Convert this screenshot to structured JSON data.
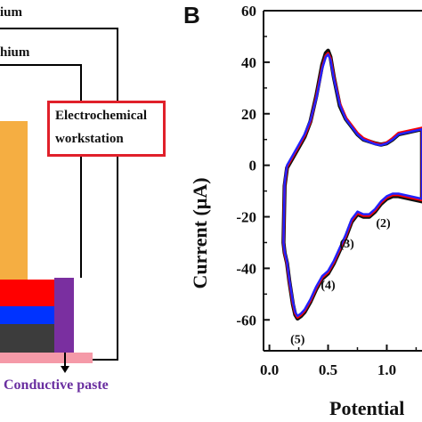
{
  "schematic": {
    "wire_labels": [
      "ium",
      "hium"
    ],
    "workstation_label_line1": "Electrochemical",
    "workstation_label_line2": "workstation",
    "paste_label": "Conductive paste",
    "colors": {
      "electrode_orange": "#f5ae42",
      "layer_red": "#ff0000",
      "layer_blue": "#0033ff",
      "layer_dark": "#3c3c3c",
      "paste_pink": "#f59aa8",
      "paste_purple": "#7a2fa0",
      "box_red": "#e0202a"
    }
  },
  "chart_data": {
    "type": "line",
    "panel_letter": "B",
    "xlabel": "Potential",
    "ylabel": "Current (μA)",
    "xlim": [
      -0.05,
      1.3
    ],
    "ylim": [
      -72,
      60
    ],
    "xticks": [
      "0.0",
      "0.5",
      "1.0"
    ],
    "yticks": [
      "60",
      "40",
      "20",
      "0",
      "-20",
      "-40",
      "-60"
    ],
    "ytick_values": [
      60,
      40,
      20,
      0,
      -20,
      -40,
      -60
    ],
    "xtick_values": [
      0.0,
      0.5,
      1.0
    ],
    "grid": false,
    "annotations": [
      {
        "text": "(2)",
        "x": 0.97,
        "y": -24
      },
      {
        "text": "(3)",
        "x": 0.66,
        "y": -32
      },
      {
        "text": "(4)",
        "x": 0.5,
        "y": -48
      },
      {
        "text": "(5)",
        "x": 0.24,
        "y": -69
      }
    ],
    "series": [
      {
        "color": "#111111",
        "x": [
          0.12,
          0.13,
          0.15,
          0.2,
          0.25,
          0.3,
          0.35,
          0.4,
          0.45,
          0.48,
          0.5,
          0.52,
          0.55,
          0.6,
          0.65,
          0.7,
          0.75,
          0.8,
          0.9,
          0.95,
          1.0,
          1.05,
          1.1,
          1.3,
          1.3,
          1.1,
          1.05,
          1.0,
          0.95,
          0.9,
          0.85,
          0.8,
          0.75,
          0.7,
          0.65,
          0.6,
          0.55,
          0.5,
          0.45,
          0.4,
          0.35,
          0.3,
          0.27,
          0.24,
          0.22,
          0.2,
          0.17,
          0.15,
          0.13,
          0.12
        ],
        "y": [
          -30,
          -8,
          -1,
          3,
          7,
          11,
          17,
          27,
          39,
          43.5,
          44.5,
          42,
          34,
          23,
          18,
          15,
          12,
          10,
          8.5,
          8,
          8.5,
          10,
          12,
          14,
          -14,
          -12,
          -12,
          -13,
          -15,
          -18,
          -20,
          -20,
          -19,
          -22,
          -28,
          -33,
          -38,
          -42,
          -44,
          -48,
          -53,
          -57,
          -58.5,
          -59.5,
          -58,
          -54,
          -45,
          -38,
          -34,
          -30
        ],
        "line_width": 4.5
      },
      {
        "color": "#ff0000",
        "x": [
          0.12,
          0.13,
          0.15,
          0.2,
          0.25,
          0.3,
          0.35,
          0.4,
          0.45,
          0.48,
          0.5,
          0.52,
          0.55,
          0.6,
          0.65,
          0.7,
          0.75,
          0.8,
          0.9,
          0.95,
          1.0,
          1.05,
          1.1,
          1.3,
          1.3,
          1.1,
          1.05,
          1.0,
          0.95,
          0.9,
          0.85,
          0.8,
          0.75,
          0.7,
          0.65,
          0.6,
          0.55,
          0.5,
          0.45,
          0.4,
          0.35,
          0.3,
          0.27,
          0.24,
          0.22,
          0.2,
          0.17,
          0.15,
          0.13,
          0.12
        ],
        "y": [
          -30,
          -7.5,
          -0.5,
          3.5,
          7.5,
          11.5,
          17,
          26.5,
          38,
          42.5,
          43.5,
          41.5,
          34,
          24,
          18.5,
          15.5,
          12.5,
          10.5,
          8.5,
          8,
          8.8,
          10.5,
          12.5,
          14.5,
          -13.5,
          -11.5,
          -11.5,
          -12.5,
          -14.5,
          -17.5,
          -19.5,
          -19.5,
          -18.5,
          -21.5,
          -27.5,
          -32.5,
          -37.5,
          -41.5,
          -43.5,
          -47.5,
          -52.5,
          -56.5,
          -58,
          -59,
          -57.5,
          -53.5,
          -45,
          -38,
          -34,
          -30
        ],
        "line_width": 3
      },
      {
        "color": "#2222ff",
        "x": [
          0.12,
          0.13,
          0.15,
          0.2,
          0.25,
          0.3,
          0.35,
          0.4,
          0.45,
          0.48,
          0.5,
          0.52,
          0.55,
          0.6,
          0.65,
          0.7,
          0.75,
          0.8,
          0.9,
          0.95,
          1.0,
          1.05,
          1.1,
          1.3,
          1.3,
          1.1,
          1.05,
          1.0,
          0.95,
          0.9,
          0.85,
          0.8,
          0.75,
          0.7,
          0.65,
          0.6,
          0.55,
          0.5,
          0.45,
          0.4,
          0.35,
          0.3,
          0.27,
          0.24,
          0.22,
          0.2,
          0.17,
          0.15,
          0.13,
          0.12
        ],
        "y": [
          -30,
          -7,
          0,
          4,
          8,
          12,
          17.5,
          26,
          37.5,
          42,
          43,
          41,
          33.5,
          23.5,
          18,
          15,
          12,
          10,
          8.2,
          7.8,
          8.5,
          10,
          12,
          14,
          -13,
          -11,
          -11,
          -12,
          -14,
          -17,
          -19,
          -19,
          -18,
          -21,
          -27,
          -32,
          -37,
          -41,
          -43,
          -47,
          -52,
          -56,
          -57.5,
          -58.5,
          -57,
          -53,
          -44.5,
          -37.5,
          -33.5,
          -30
        ],
        "line_width": 2.5
      }
    ]
  }
}
